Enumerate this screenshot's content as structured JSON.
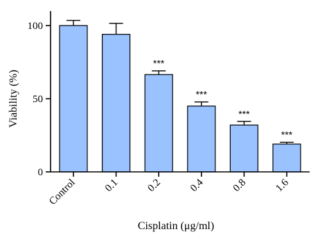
{
  "chart_data": {
    "type": "bar",
    "categories": [
      "Control",
      "0.1",
      "0.2",
      "0.4",
      "0.8",
      "1.6"
    ],
    "values": [
      100,
      94,
      66.5,
      45,
      32,
      19
    ],
    "errors": [
      3.5,
      7.5,
      2.5,
      2.8,
      2.5,
      1.2
    ],
    "significance": [
      "",
      "",
      "***",
      "***",
      "***",
      "***"
    ],
    "xlabel": "Cisplatin (μg/ml)",
    "ylabel": "Viability (%)",
    "ylim": [
      0,
      120
    ],
    "yticks": [
      0,
      50,
      100
    ],
    "bar_color": "#99c2ff",
    "edge_color": "#000000",
    "grid": false
  }
}
